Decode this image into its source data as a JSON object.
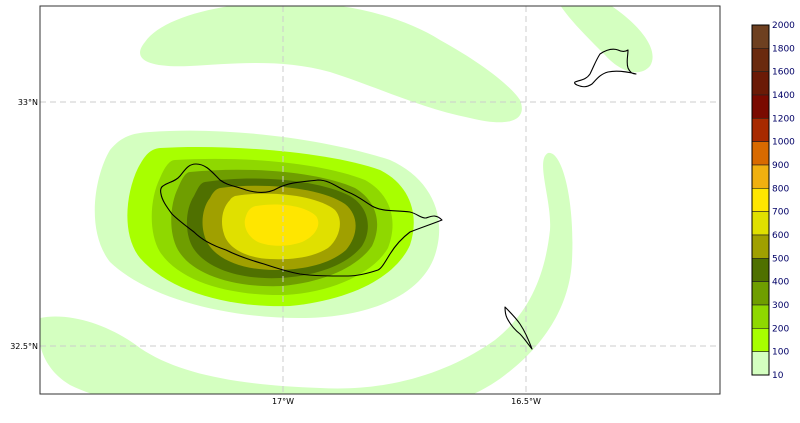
{
  "map": {
    "lat_labels": [
      "33°N",
      "32.5°N"
    ],
    "lon_labels": [
      "17°W",
      "16.5°W"
    ],
    "gridlines": "dashed"
  },
  "colorbar": {
    "labels": [
      "2000",
      "1800",
      "1600",
      "1400",
      "1200",
      "1000",
      "900",
      "800",
      "700",
      "600",
      "500",
      "400",
      "300",
      "200",
      "100",
      "10"
    ],
    "colors_top_to_bottom": [
      "#6e4020",
      "#6a2a0e",
      "#6b1a06",
      "#7a0a00",
      "#a82a00",
      "#d86a00",
      "#f0b010",
      "#ffe600",
      "#e0e000",
      "#a0a000",
      "#4f7000",
      "#6f9e00",
      "#8fd800",
      "#a8ff00",
      "#d4ffc0"
    ]
  },
  "contour_colors": {
    "c10": "#d4ffc0",
    "c100": "#a8ff00",
    "c200": "#8fd800",
    "c300": "#6f9e00",
    "c400": "#4f7000",
    "c500": "#a0a000",
    "c600": "#e0e000",
    "c700": "#ffe600"
  }
}
